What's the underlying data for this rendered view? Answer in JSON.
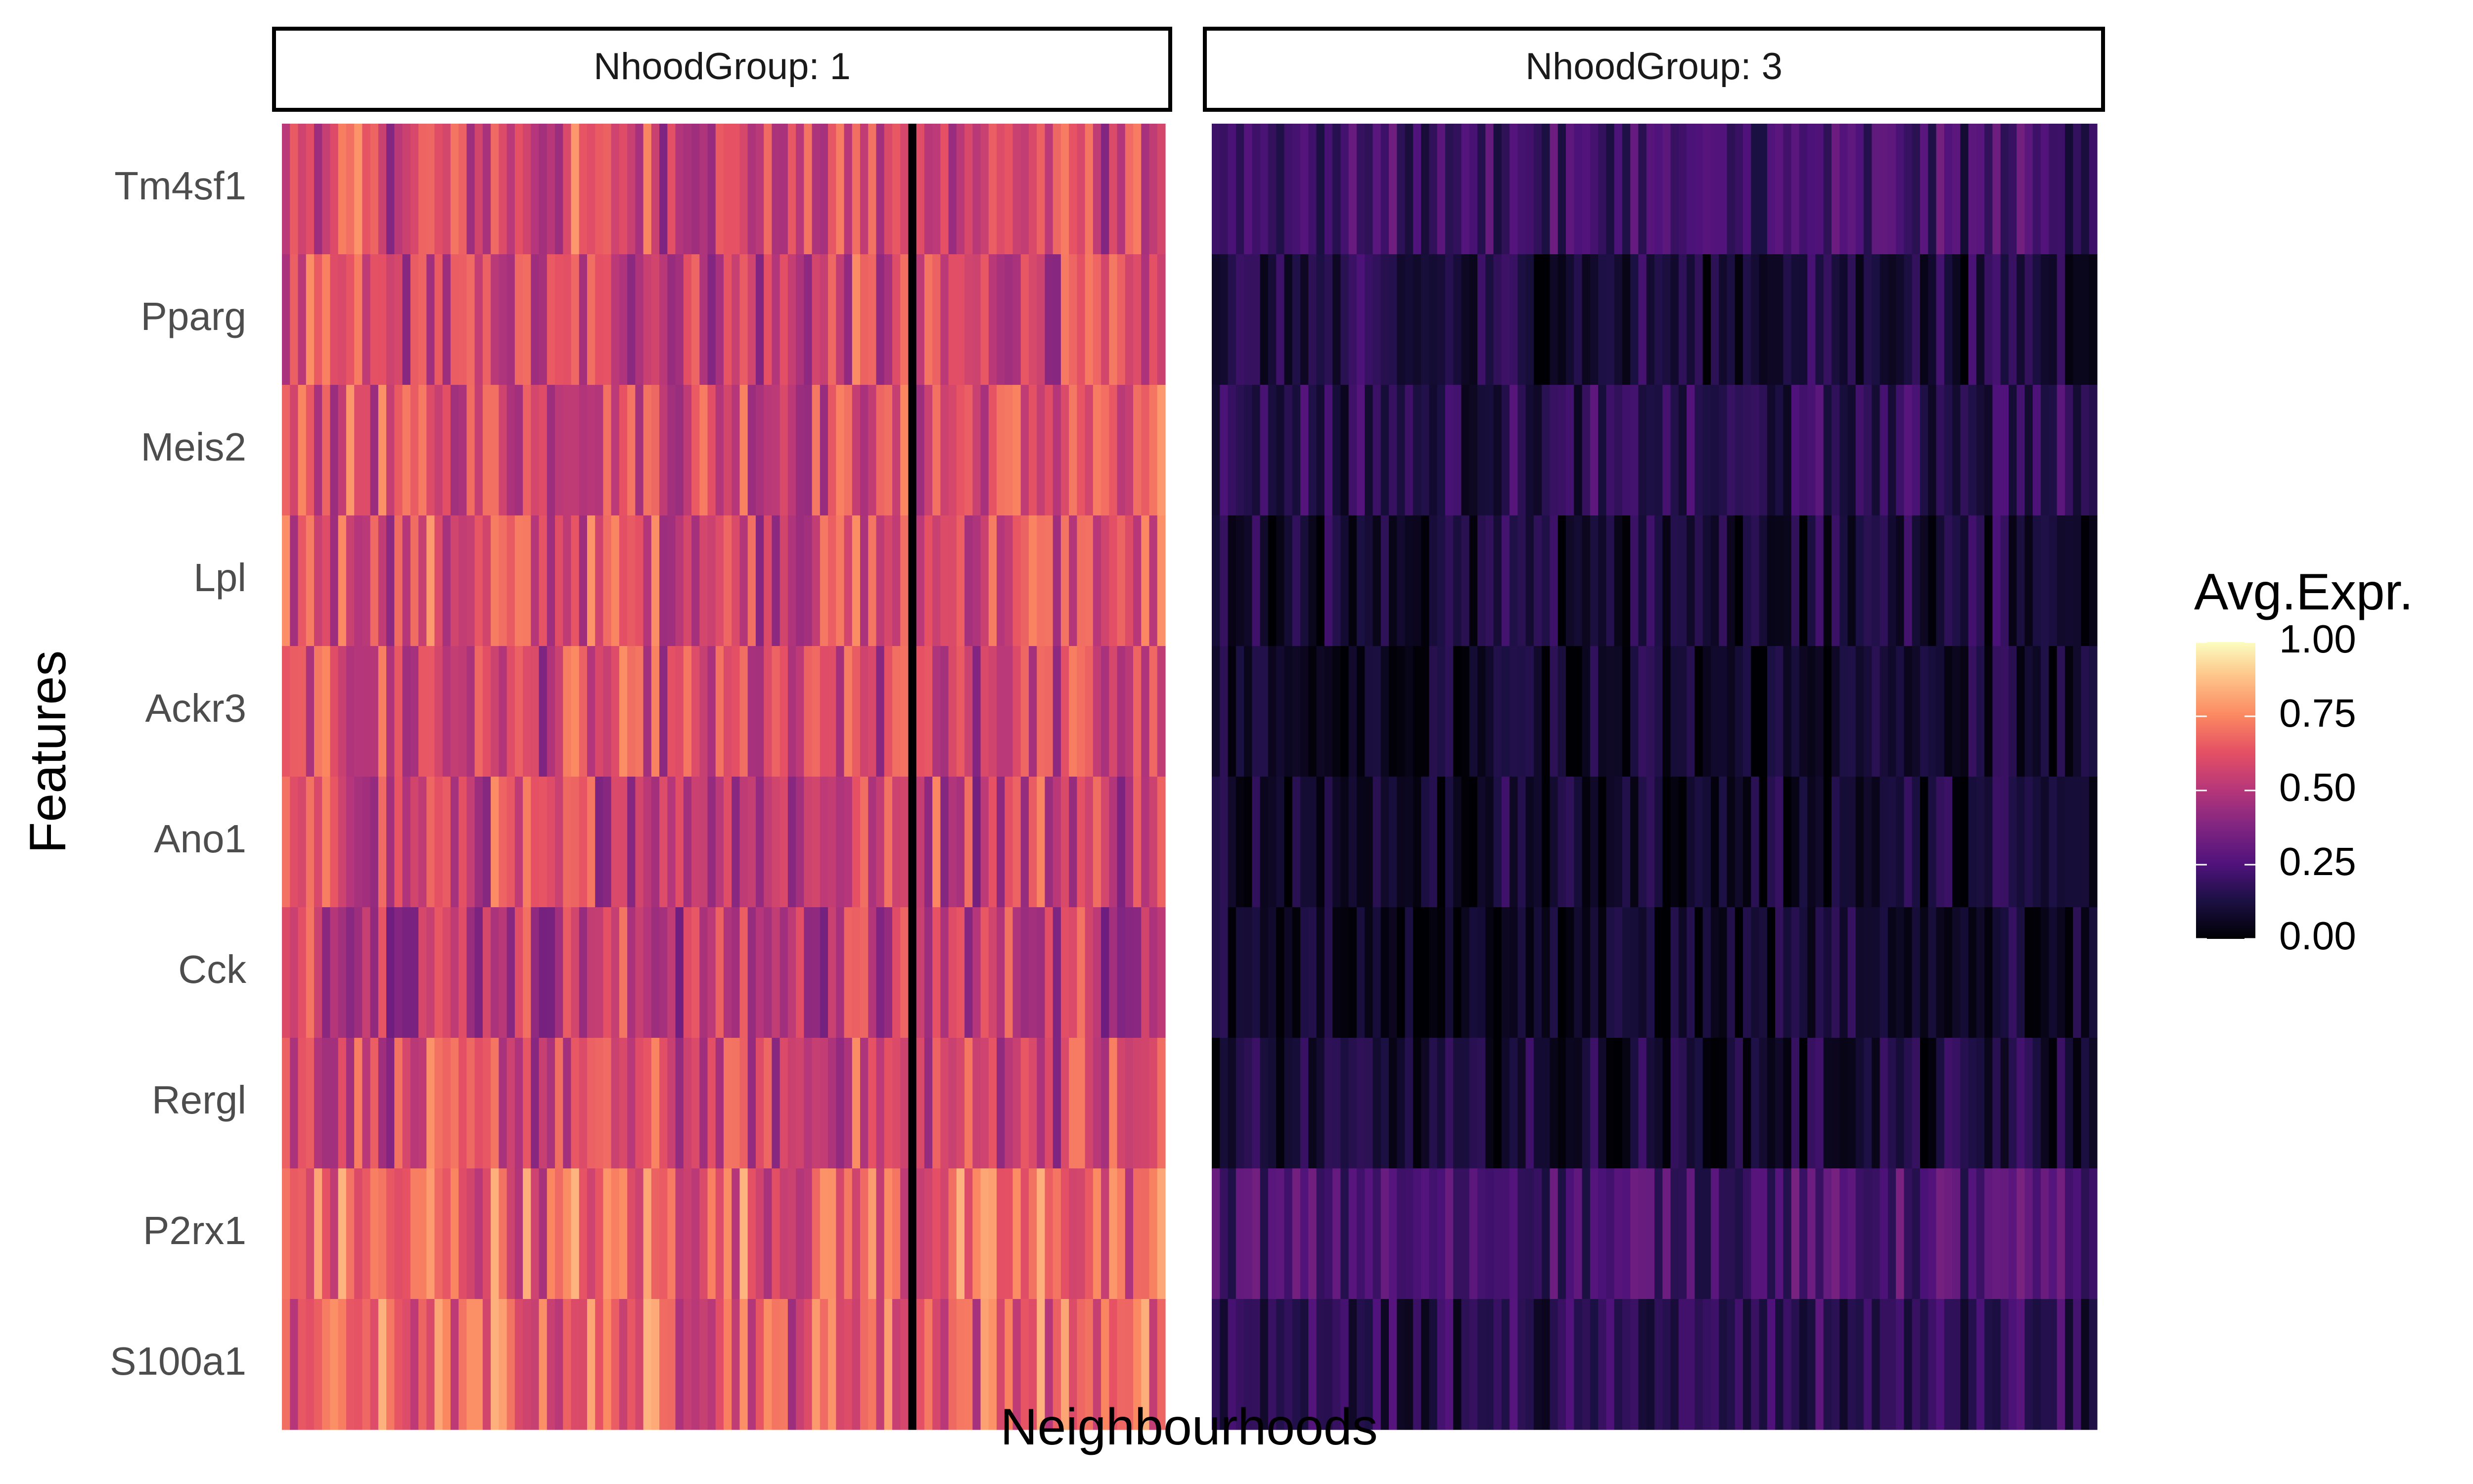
{
  "chart_data": {
    "type": "heatmap",
    "xlabel": "Neighbourhoods",
    "ylabel": "Features",
    "features": [
      "Tm4sf1",
      "Pparg",
      "Meis2",
      "Lpl",
      "Ackr3",
      "Ano1",
      "Cck",
      "Rergl",
      "P2rx1",
      "S100a1"
    ],
    "legend": {
      "title": "Avg.Expr.",
      "ticks": [
        "0.00",
        "0.25",
        "0.50",
        "0.75",
        "1.00"
      ],
      "range": [
        0,
        1
      ],
      "palette": "magma",
      "placement": "right"
    },
    "facets": [
      {
        "label": "NhoodGroup: 1",
        "columns": 110,
        "mean_by_feature": [
          0.58,
          0.56,
          0.6,
          0.6,
          0.57,
          0.56,
          0.53,
          0.57,
          0.66,
          0.66
        ],
        "spread": 0.2,
        "dark_columns": [
          78
        ]
      },
      {
        "label": "NhoodGroup: 3",
        "columns": 110,
        "mean_by_feature": [
          0.22,
          0.12,
          0.16,
          0.11,
          0.08,
          0.09,
          0.08,
          0.1,
          0.24,
          0.16
        ],
        "spread": 0.12,
        "dark_columns": []
      }
    ]
  },
  "colors": {
    "strip_border": "#000000",
    "background": "#ffffff",
    "feature_text": "#4d4d4d"
  }
}
